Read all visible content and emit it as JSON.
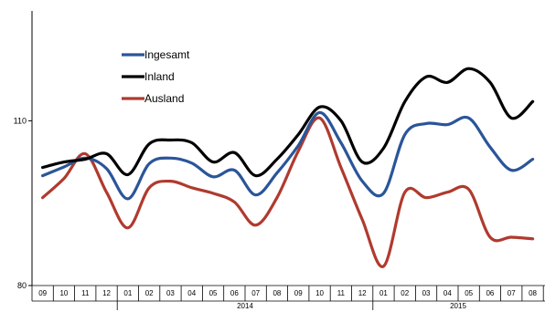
{
  "chart_data": {
    "type": "line",
    "categories": [
      "09",
      "10",
      "11",
      "12",
      "01",
      "02",
      "03",
      "04",
      "05",
      "06",
      "07",
      "08",
      "09",
      "10",
      "11",
      "12",
      "01",
      "02",
      "03",
      "04",
      "05",
      "06",
      "07",
      "08"
    ],
    "year_labels": [
      {
        "label": "2014",
        "from": 4,
        "to": 15
      },
      {
        "label": "2015",
        "from": 16,
        "to": 23
      }
    ],
    "ylim": [
      80,
      130
    ],
    "yticks": [
      80,
      110
    ],
    "legend_position": "top-left",
    "grid": false,
    "series": [
      {
        "name": "Ingesamt",
        "color": "#2a5599",
        "values": [
          100,
          101.6,
          103.2,
          101.3,
          95.8,
          102.2,
          103.2,
          102.3,
          99.8,
          101.0,
          96.5,
          100.5,
          105.5,
          111.5,
          106.0,
          99.0,
          96.8,
          107.5,
          109.5,
          109.3,
          110.5,
          105.2,
          101.0,
          103.0
        ]
      },
      {
        "name": "Inland",
        "color": "#000000",
        "values": [
          101.5,
          102.5,
          103.0,
          104.0,
          100.2,
          105.8,
          106.5,
          106.0,
          102.5,
          104.2,
          100.0,
          103.0,
          107.5,
          112.5,
          110.0,
          102.5,
          105.0,
          113.5,
          118.0,
          117.0,
          119.5,
          117.0,
          110.5,
          113.5
        ]
      },
      {
        "name": "Ausland",
        "color": "#b03a2e",
        "values": [
          96.0,
          99.5,
          104.0,
          97.0,
          90.5,
          97.8,
          99.0,
          97.8,
          96.8,
          95.2,
          91.0,
          96.0,
          104.5,
          110.5,
          101.5,
          92.0,
          83.5,
          97.0,
          96.0,
          97.0,
          97.5,
          88.8,
          88.8,
          88.5
        ]
      }
    ]
  }
}
